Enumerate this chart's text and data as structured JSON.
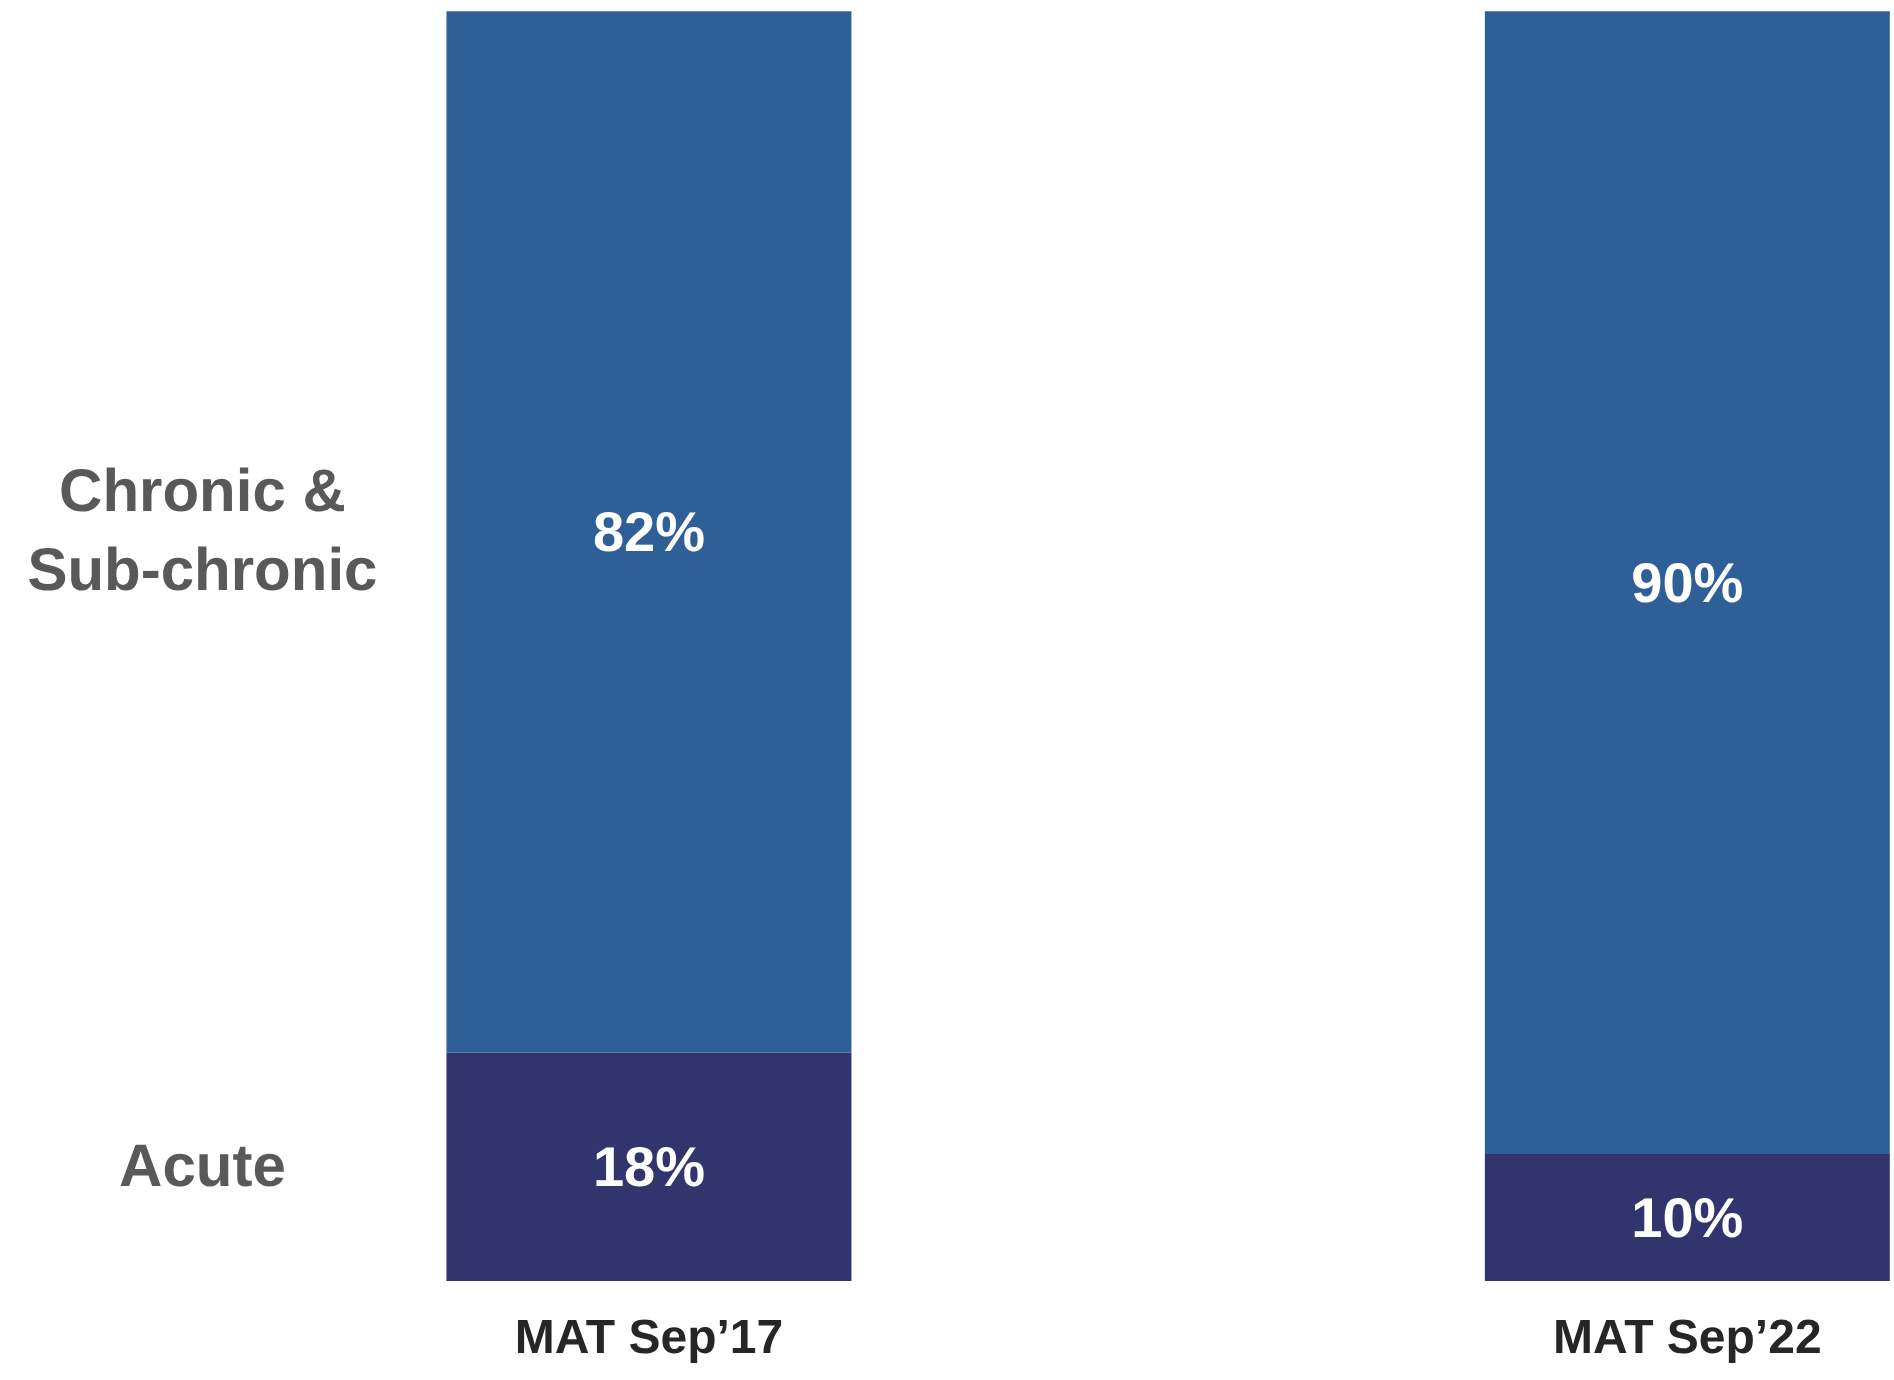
{
  "chart_data": {
    "type": "bar",
    "stacked": true,
    "categories": [
      "MAT Sep’17",
      "MAT Sep’22"
    ],
    "series": [
      {
        "name": "Acute",
        "color": "#32356d",
        "values": [
          18,
          10
        ],
        "value_labels": [
          "18%",
          "10%"
        ]
      },
      {
        "name": "Chronic & Sub-chronic",
        "color": "#2e5f97",
        "values": [
          82,
          90
        ],
        "value_labels": [
          "82%",
          "90%"
        ]
      }
    ],
    "ylim": [
      0,
      100
    ],
    "legend": false,
    "grid": false,
    "tick_labels": "x"
  }
}
